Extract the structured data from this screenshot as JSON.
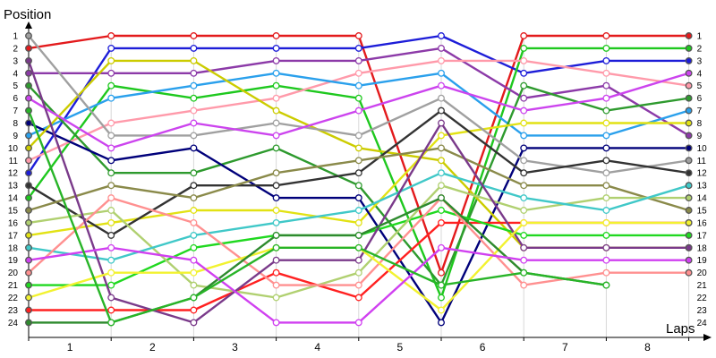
{
  "chart_data": {
    "type": "line",
    "ylabel": "Position",
    "xlabel": "Laps",
    "x": [
      0,
      1,
      2,
      3,
      4,
      5,
      6,
      7,
      8
    ],
    "x_tick_labels": [
      "1",
      "2",
      "3",
      "4",
      "5",
      "6",
      "7",
      "8"
    ],
    "y_range": [
      1,
      24
    ],
    "y_inverted": true,
    "y_ticks": [
      1,
      2,
      3,
      4,
      5,
      6,
      7,
      8,
      9,
      10,
      11,
      12,
      13,
      14,
      15,
      16,
      17,
      18,
      19,
      20,
      21,
      22,
      23,
      24
    ],
    "right_tick_labels": [
      "1",
      "2",
      "3",
      "4",
      "5",
      "6",
      "7",
      "8",
      "9",
      "10",
      "11",
      "12",
      "13",
      "14",
      "15",
      "16",
      "17",
      "18",
      "19",
      "20",
      "21",
      "22",
      "23",
      "24"
    ],
    "grid": "vertical",
    "series": [
      {
        "color": "#e31a1c",
        "values": [
          2,
          1,
          1,
          1,
          1,
          20,
          1,
          1,
          1
        ]
      },
      {
        "color": "#1d1dd8",
        "values": [
          12,
          2,
          2,
          2,
          2,
          1,
          4,
          3,
          3
        ]
      },
      {
        "color": "#1ec81e",
        "values": [
          14,
          5,
          6,
          5,
          6,
          22,
          2,
          2,
          2
        ]
      },
      {
        "color": "#8c3aa8",
        "values": [
          4,
          4,
          4,
          3,
          3,
          2,
          6,
          5,
          9
        ]
      },
      {
        "color": "#ff9aaa",
        "values": [
          11,
          8,
          7,
          6,
          4,
          3,
          3,
          4,
          5
        ]
      },
      {
        "color": "#2aa0ec",
        "values": [
          9,
          6,
          5,
          4,
          5,
          4,
          9,
          9,
          7
        ]
      },
      {
        "color": "#2e9a2e",
        "values": [
          5,
          12,
          12,
          10,
          13,
          21,
          5,
          7,
          6
        ]
      },
      {
        "color": "#e2e214",
        "values": [
          17,
          16,
          15,
          15,
          16,
          9,
          8,
          8,
          8
        ]
      },
      {
        "color": "#00007a",
        "values": [
          8,
          11,
          10,
          14,
          14,
          24,
          10,
          10,
          10
        ]
      },
      {
        "color": "#cccc00",
        "values": [
          10,
          3,
          3,
          7,
          10,
          11,
          18,
          18,
          18
        ]
      },
      {
        "color": "#a0a0a0",
        "values": [
          1,
          9,
          9,
          8,
          9,
          6,
          11,
          12,
          11
        ]
      },
      {
        "color": "#333333",
        "values": [
          13,
          17,
          13,
          13,
          12,
          7,
          12,
          11,
          12
        ]
      },
      {
        "color": "#8a8a4a",
        "values": [
          15,
          13,
          14,
          12,
          11,
          10,
          13,
          13,
          15
        ]
      },
      {
        "color": "#cc44ee",
        "values": [
          6,
          10,
          8,
          9,
          7,
          5,
          7,
          6,
          4
        ]
      },
      {
        "color": "#ff2020",
        "values": [
          23,
          23,
          23,
          20,
          22,
          16,
          16,
          16,
          16
        ]
      },
      {
        "color": "#20d820",
        "values": [
          21,
          21,
          18,
          17,
          17,
          15,
          17,
          17,
          17
        ]
      },
      {
        "color": "#b0d070",
        "values": [
          16,
          15,
          21,
          22,
          20,
          13,
          15,
          14,
          14
        ]
      },
      {
        "color": "#40c8c8",
        "values": [
          18,
          19,
          17,
          16,
          15,
          12,
          14,
          15,
          13
        ]
      },
      {
        "color": "#ff9090",
        "values": [
          20,
          14,
          16,
          21,
          21,
          14,
          21,
          20,
          20
        ]
      },
      {
        "color": "#7a3a8a",
        "values": [
          3,
          22,
          24,
          19,
          19,
          8,
          18,
          18,
          18
        ]
      },
      {
        "color": "#f2f230",
        "values": [
          22,
          20,
          20,
          18,
          18,
          23,
          16,
          16,
          16
        ]
      },
      {
        "color": "#2e8a2e",
        "values": [
          24,
          24,
          22,
          17,
          17,
          14,
          20,
          21,
          null
        ]
      },
      {
        "color": "#d040f0",
        "values": [
          19,
          18,
          19,
          24,
          24,
          18,
          19,
          19,
          19
        ]
      },
      {
        "color": "#28b428",
        "values": [
          7,
          24,
          22,
          18,
          18,
          21,
          20,
          21,
          null
        ]
      }
    ]
  }
}
